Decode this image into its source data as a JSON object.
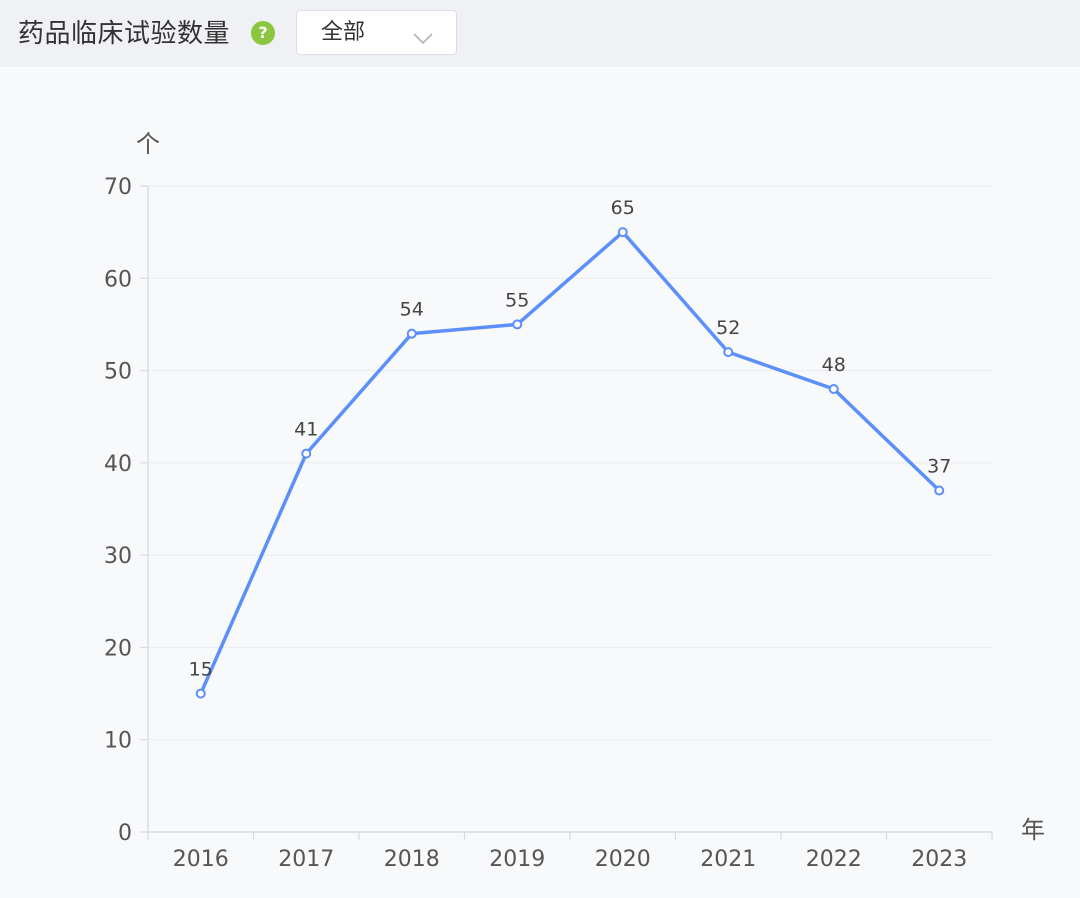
{
  "header": {
    "title": "药品临床试验数量",
    "help_icon_glyph": "?",
    "help_icon": "question-circle-icon",
    "filter": {
      "selected": "全部",
      "icon": "chevron-down-icon"
    }
  },
  "colors": {
    "line": "#5b8ff9",
    "help_icon": "#8cc63f",
    "axis_text": "#555555",
    "grid": "#eceef2",
    "axis_line": "#d8dbe2"
  },
  "chart_data": {
    "type": "line",
    "title": "",
    "xlabel": "年",
    "ylabel": "个",
    "categories": [
      "2016",
      "2017",
      "2018",
      "2019",
      "2020",
      "2021",
      "2022",
      "2023"
    ],
    "values": [
      15,
      41,
      54,
      55,
      65,
      52,
      48,
      37
    ],
    "ylim": [
      0,
      70
    ],
    "yticks": [
      0,
      10,
      20,
      30,
      40,
      50,
      60,
      70
    ],
    "grid": true,
    "data_labels": true,
    "legend": "none"
  }
}
